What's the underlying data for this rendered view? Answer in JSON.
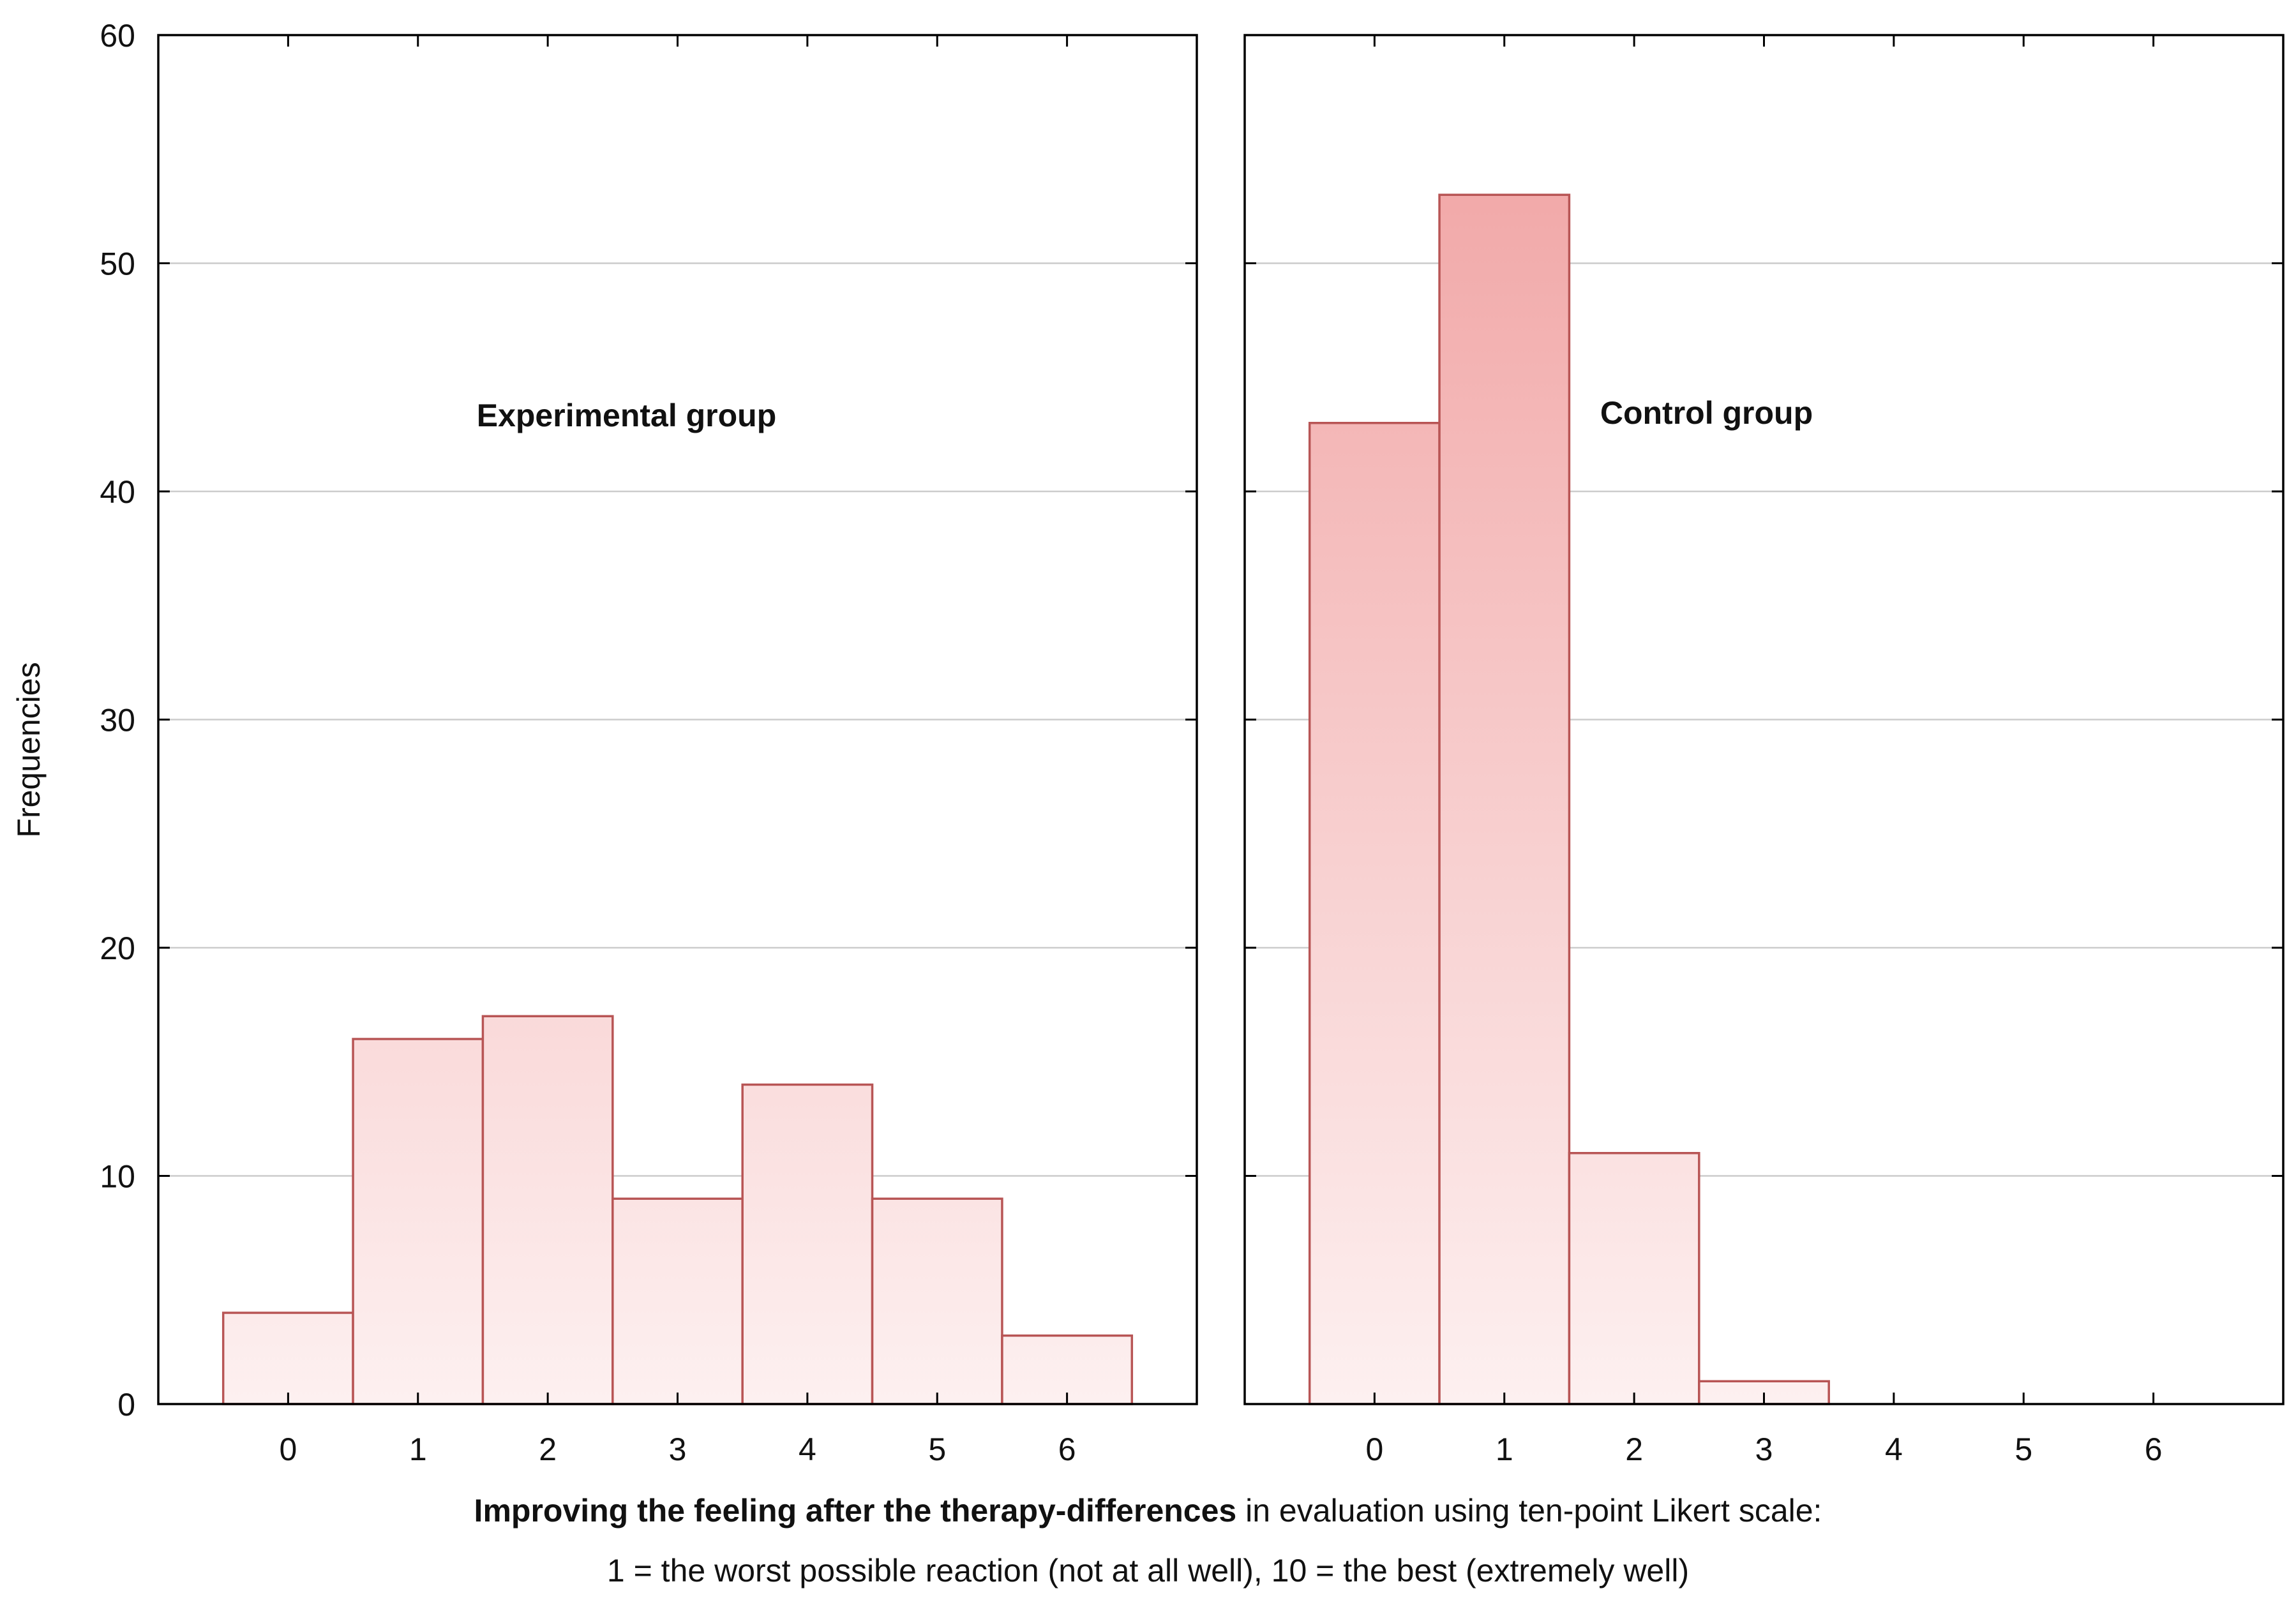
{
  "chart_data": {
    "type": "bar",
    "ylabel": "Frequencies",
    "ylim": [
      0,
      60
    ],
    "yticks": [
      0,
      10,
      20,
      30,
      40,
      50,
      60
    ],
    "grid": true,
    "categories": [
      "0",
      "1",
      "2",
      "3",
      "4",
      "5",
      "6"
    ],
    "panels": [
      {
        "name": "Experimental group",
        "values": [
          4,
          16,
          17,
          9,
          14,
          9,
          3
        ]
      },
      {
        "name": "Control group",
        "values": [
          43,
          53,
          11,
          1,
          0,
          0,
          0
        ]
      }
    ],
    "xlabel_bold": "Improving the feeling after the therapy-differences",
    "xlabel_rest": " in evaluation using ten-point  Likert scale:",
    "xlabel_line2": "1 = the worst possible reaction (not at all well), 10 = the best (extremely well)",
    "colors": {
      "bar_fill_top": "#f0a0a0",
      "bar_fill_bottom": "#fdf0f0",
      "bar_stroke": "#b85555",
      "grid": "#cccccc",
      "axis": "#000000"
    }
  }
}
